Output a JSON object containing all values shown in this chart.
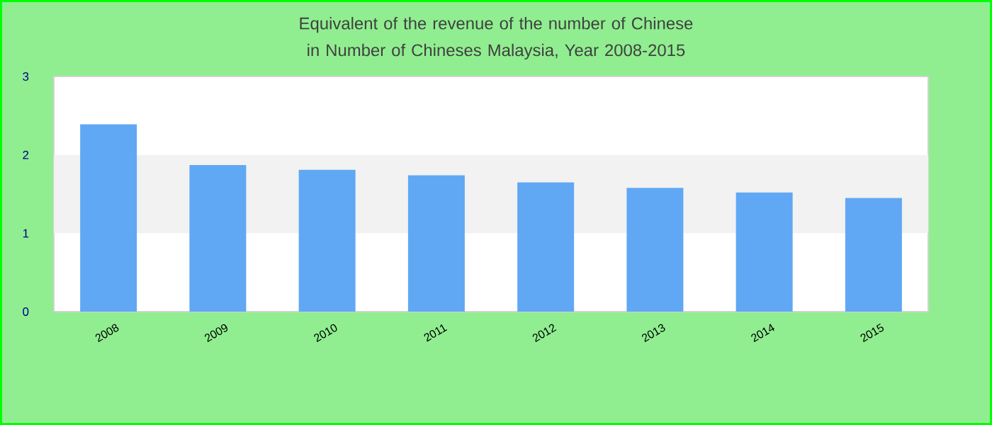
{
  "chart_data": {
    "type": "bar",
    "title": "Equivalent of the revenue of the number of Chinese  in Number of Chineses Malaysia, Year 2008-2015",
    "categories": [
      "2008",
      "2009",
      "2010",
      "2011",
      "2012",
      "2013",
      "2014",
      "2015"
    ],
    "values": [
      2.39,
      1.87,
      1.81,
      1.74,
      1.65,
      1.58,
      1.52,
      1.45
    ],
    "color": "#60a8f4",
    "ylim": [
      0,
      3
    ],
    "yticks": [
      0,
      1,
      2,
      3
    ],
    "bands": [
      {
        "axis": "y",
        "from": 1,
        "to": 2,
        "color": "#f2f2f2"
      }
    ]
  }
}
